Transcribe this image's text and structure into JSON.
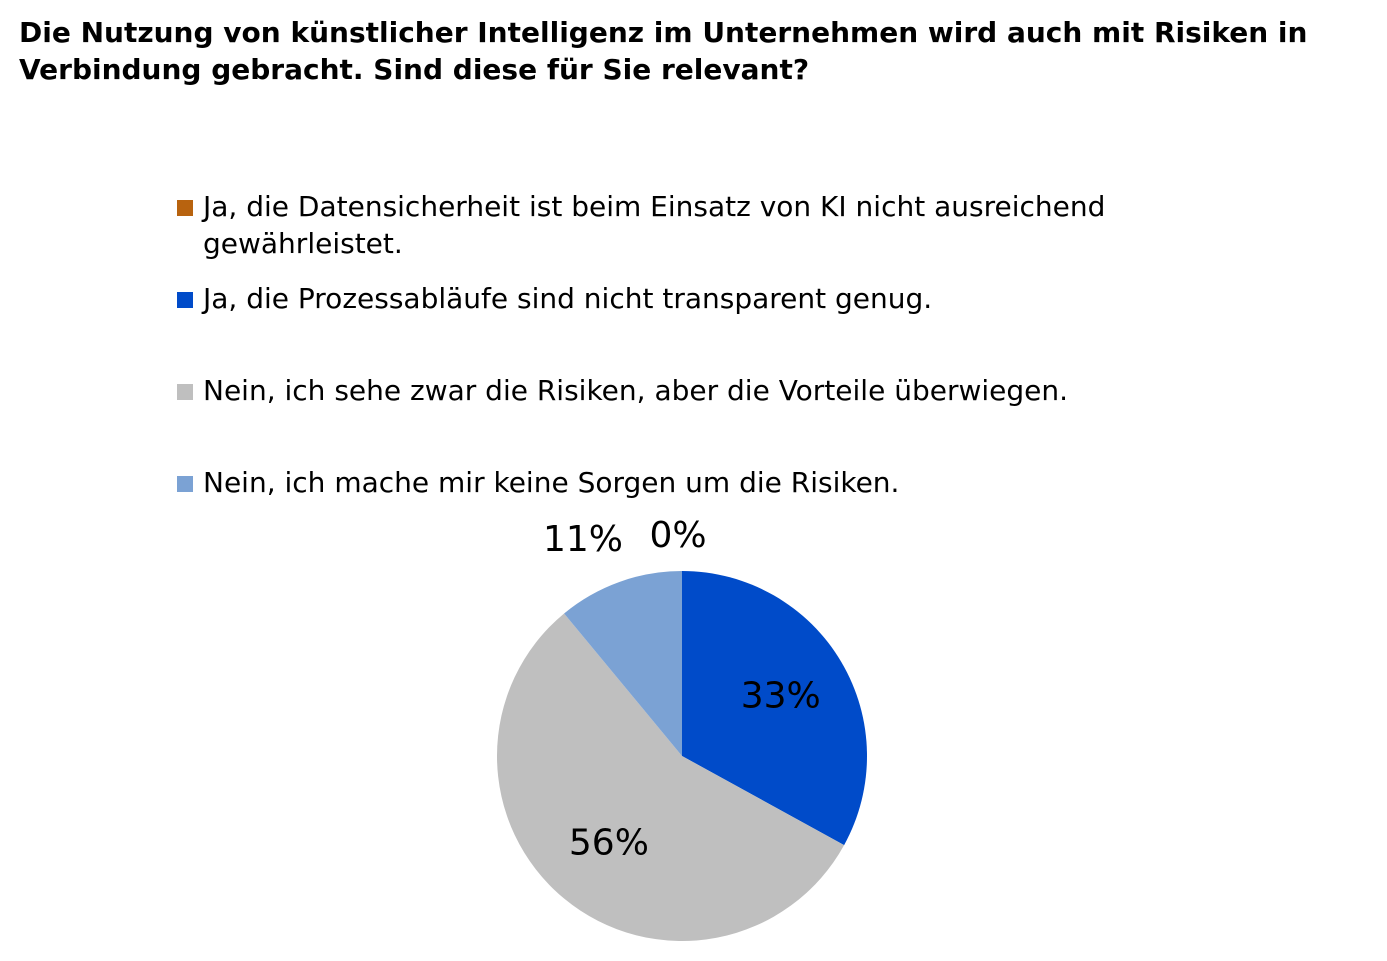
{
  "chart_data": {
    "type": "pie",
    "title": "Die Nutzung von künstlicher Intelligenz im Unternehmen wird auch mit Risiken in Verbindung gebracht. Sind diese für Sie relevant?",
    "legend_position": "top",
    "slices": [
      {
        "label": "Ja, die Datensicherheit ist beim Einsatz von KI nicht ausreichend gewährleistet.",
        "value": 0,
        "display": "0%",
        "color": "#B8630F"
      },
      {
        "label": "Ja, die Prozessabläufe sind nicht transparent genug.",
        "value": 33,
        "display": "33%",
        "color": "#004BC9"
      },
      {
        "label": "Nein, ich sehe zwar die Risiken, aber die Vorteile überwiegen.",
        "value": 56,
        "display": "56%",
        "color": "#BFBFBF"
      },
      {
        "label": "Nein, ich mache mir keine Sorgen um die Risiken.",
        "value": 11,
        "display": "11%",
        "color": "#7BA2D4"
      }
    ]
  }
}
